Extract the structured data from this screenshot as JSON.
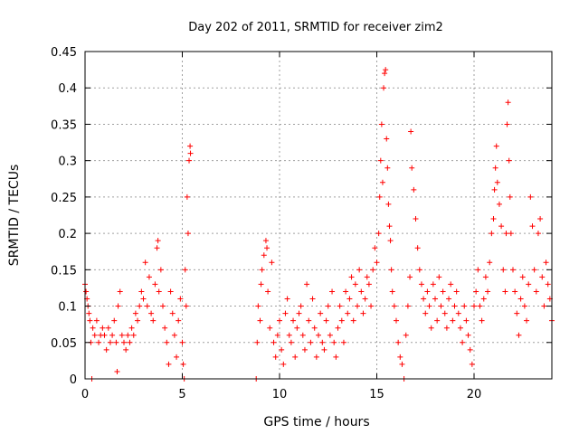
{
  "chart_data": {
    "type": "scatter",
    "title": "Day 202 of 2011, SRMTID for receiver zim2",
    "xlabel": "GPS time / hours",
    "ylabel": "SRMTID / TECUs",
    "xlim": [
      0,
      24
    ],
    "ylim": [
      0,
      0.45
    ],
    "xticks": [
      0,
      5,
      10,
      15,
      20
    ],
    "xtick_labels": [
      "0",
      "5",
      "10",
      "15",
      "20"
    ],
    "yticks": [
      0,
      0.05,
      0.1,
      0.15,
      0.2,
      0.25,
      0.3,
      0.35,
      0.4,
      0.45
    ],
    "ytick_labels": [
      "0",
      "0.05",
      "0.1",
      "0.15",
      "0.2",
      "0.25",
      "0.3",
      "0.35",
      "0.4",
      "0.45"
    ],
    "grid": true,
    "marker": "+",
    "color": "#ff0000",
    "series": [
      {
        "name": "SRMTID",
        "points": [
          [
            0.0,
            0.13
          ],
          [
            0.05,
            0.12
          ],
          [
            0.1,
            0.11
          ],
          [
            0.15,
            0.1
          ],
          [
            0.2,
            0.09
          ],
          [
            0.25,
            0.08
          ],
          [
            0.3,
            0.05
          ],
          [
            0.35,
            0.0
          ],
          [
            0.4,
            0.07
          ],
          [
            0.5,
            0.06
          ],
          [
            0.6,
            0.08
          ],
          [
            0.7,
            0.05
          ],
          [
            0.8,
            0.06
          ],
          [
            0.9,
            0.07
          ],
          [
            1.0,
            0.06
          ],
          [
            1.1,
            0.04
          ],
          [
            1.2,
            0.07
          ],
          [
            1.3,
            0.05
          ],
          [
            1.4,
            0.06
          ],
          [
            1.5,
            0.08
          ],
          [
            1.6,
            0.05
          ],
          [
            1.65,
            0.01
          ],
          [
            1.7,
            0.1
          ],
          [
            1.8,
            0.12
          ],
          [
            1.9,
            0.06
          ],
          [
            2.0,
            0.05
          ],
          [
            2.1,
            0.04
          ],
          [
            2.2,
            0.06
          ],
          [
            2.3,
            0.05
          ],
          [
            2.4,
            0.07
          ],
          [
            2.5,
            0.06
          ],
          [
            2.6,
            0.09
          ],
          [
            2.7,
            0.08
          ],
          [
            2.8,
            0.1
          ],
          [
            2.9,
            0.12
          ],
          [
            3.0,
            0.11
          ],
          [
            3.1,
            0.16
          ],
          [
            3.2,
            0.1
          ],
          [
            3.3,
            0.14
          ],
          [
            3.4,
            0.09
          ],
          [
            3.5,
            0.08
          ],
          [
            3.6,
            0.13
          ],
          [
            3.7,
            0.18
          ],
          [
            3.75,
            0.19
          ],
          [
            3.8,
            0.12
          ],
          [
            3.9,
            0.15
          ],
          [
            4.0,
            0.1
          ],
          [
            4.1,
            0.07
          ],
          [
            4.2,
            0.05
          ],
          [
            4.3,
            0.02
          ],
          [
            4.4,
            0.12
          ],
          [
            4.5,
            0.09
          ],
          [
            4.6,
            0.06
          ],
          [
            4.7,
            0.03
          ],
          [
            4.8,
            0.08
          ],
          [
            4.9,
            0.11
          ],
          [
            5.0,
            0.05
          ],
          [
            5.05,
            0.02
          ],
          [
            5.1,
            0.0
          ],
          [
            5.15,
            0.15
          ],
          [
            5.2,
            0.1
          ],
          [
            5.25,
            0.25
          ],
          [
            5.3,
            0.2
          ],
          [
            5.35,
            0.3
          ],
          [
            5.4,
            0.32
          ],
          [
            5.42,
            0.31
          ],
          [
            8.8,
            0.0
          ],
          [
            8.85,
            0.05
          ],
          [
            8.9,
            0.1
          ],
          [
            9.0,
            0.08
          ],
          [
            9.05,
            0.13
          ],
          [
            9.1,
            0.15
          ],
          [
            9.2,
            0.17
          ],
          [
            9.3,
            0.19
          ],
          [
            9.35,
            0.18
          ],
          [
            9.4,
            0.12
          ],
          [
            9.5,
            0.07
          ],
          [
            9.6,
            0.16
          ],
          [
            9.7,
            0.05
          ],
          [
            9.8,
            0.03
          ],
          [
            9.9,
            0.06
          ],
          [
            10.0,
            0.08
          ],
          [
            10.1,
            0.04
          ],
          [
            10.2,
            0.02
          ],
          [
            10.3,
            0.09
          ],
          [
            10.4,
            0.11
          ],
          [
            10.5,
            0.06
          ],
          [
            10.6,
            0.05
          ],
          [
            10.7,
            0.08
          ],
          [
            10.8,
            0.03
          ],
          [
            10.9,
            0.07
          ],
          [
            11.0,
            0.09
          ],
          [
            11.1,
            0.1
          ],
          [
            11.2,
            0.06
          ],
          [
            11.3,
            0.04
          ],
          [
            11.4,
            0.13
          ],
          [
            11.5,
            0.08
          ],
          [
            11.6,
            0.05
          ],
          [
            11.7,
            0.11
          ],
          [
            11.8,
            0.07
          ],
          [
            11.9,
            0.03
          ],
          [
            12.0,
            0.06
          ],
          [
            12.1,
            0.09
          ],
          [
            12.2,
            0.05
          ],
          [
            12.3,
            0.04
          ],
          [
            12.4,
            0.08
          ],
          [
            12.5,
            0.1
          ],
          [
            12.6,
            0.06
          ],
          [
            12.7,
            0.12
          ],
          [
            12.8,
            0.05
          ],
          [
            12.9,
            0.03
          ],
          [
            13.0,
            0.07
          ],
          [
            13.1,
            0.1
          ],
          [
            13.2,
            0.08
          ],
          [
            13.3,
            0.05
          ],
          [
            13.4,
            0.12
          ],
          [
            13.5,
            0.09
          ],
          [
            13.6,
            0.11
          ],
          [
            13.7,
            0.14
          ],
          [
            13.8,
            0.08
          ],
          [
            13.9,
            0.13
          ],
          [
            14.0,
            0.1
          ],
          [
            14.1,
            0.15
          ],
          [
            14.2,
            0.12
          ],
          [
            14.3,
            0.09
          ],
          [
            14.4,
            0.11
          ],
          [
            14.5,
            0.14
          ],
          [
            14.6,
            0.13
          ],
          [
            14.7,
            0.1
          ],
          [
            14.8,
            0.15
          ],
          [
            14.9,
            0.18
          ],
          [
            15.0,
            0.16
          ],
          [
            15.1,
            0.2
          ],
          [
            15.15,
            0.25
          ],
          [
            15.2,
            0.3
          ],
          [
            15.25,
            0.35
          ],
          [
            15.3,
            0.27
          ],
          [
            15.35,
            0.4
          ],
          [
            15.4,
            0.42
          ],
          [
            15.45,
            0.425
          ],
          [
            15.5,
            0.33
          ],
          [
            15.55,
            0.29
          ],
          [
            15.6,
            0.24
          ],
          [
            15.65,
            0.21
          ],
          [
            15.7,
            0.19
          ],
          [
            15.75,
            0.15
          ],
          [
            15.8,
            0.12
          ],
          [
            15.9,
            0.1
          ],
          [
            16.0,
            0.08
          ],
          [
            16.1,
            0.05
          ],
          [
            16.2,
            0.03
          ],
          [
            16.3,
            0.02
          ],
          [
            16.4,
            0.0
          ],
          [
            16.5,
            0.06
          ],
          [
            16.6,
            0.1
          ],
          [
            16.7,
            0.14
          ],
          [
            16.75,
            0.34
          ],
          [
            16.8,
            0.29
          ],
          [
            16.9,
            0.26
          ],
          [
            17.0,
            0.22
          ],
          [
            17.1,
            0.18
          ],
          [
            17.2,
            0.15
          ],
          [
            17.3,
            0.13
          ],
          [
            17.4,
            0.11
          ],
          [
            17.5,
            0.09
          ],
          [
            17.6,
            0.12
          ],
          [
            17.7,
            0.1
          ],
          [
            17.8,
            0.07
          ],
          [
            17.9,
            0.13
          ],
          [
            18.0,
            0.11
          ],
          [
            18.1,
            0.08
          ],
          [
            18.2,
            0.14
          ],
          [
            18.3,
            0.1
          ],
          [
            18.4,
            0.12
          ],
          [
            18.5,
            0.09
          ],
          [
            18.6,
            0.07
          ],
          [
            18.7,
            0.11
          ],
          [
            18.8,
            0.13
          ],
          [
            18.9,
            0.08
          ],
          [
            19.0,
            0.1
          ],
          [
            19.1,
            0.12
          ],
          [
            19.2,
            0.09
          ],
          [
            19.3,
            0.07
          ],
          [
            19.4,
            0.05
          ],
          [
            19.5,
            0.1
          ],
          [
            19.6,
            0.08
          ],
          [
            19.7,
            0.06
          ],
          [
            19.8,
            0.04
          ],
          [
            19.9,
            0.02
          ],
          [
            20.0,
            0.1
          ],
          [
            20.1,
            0.12
          ],
          [
            20.2,
            0.15
          ],
          [
            20.3,
            0.1
          ],
          [
            20.4,
            0.08
          ],
          [
            20.5,
            0.11
          ],
          [
            20.6,
            0.14
          ],
          [
            20.7,
            0.12
          ],
          [
            20.8,
            0.16
          ],
          [
            20.9,
            0.2
          ],
          [
            21.0,
            0.22
          ],
          [
            21.05,
            0.26
          ],
          [
            21.1,
            0.29
          ],
          [
            21.15,
            0.32
          ],
          [
            21.2,
            0.27
          ],
          [
            21.3,
            0.24
          ],
          [
            21.4,
            0.21
          ],
          [
            21.5,
            0.15
          ],
          [
            21.6,
            0.12
          ],
          [
            21.65,
            0.2
          ],
          [
            21.7,
            0.35
          ],
          [
            21.75,
            0.38
          ],
          [
            21.8,
            0.3
          ],
          [
            21.85,
            0.25
          ],
          [
            21.9,
            0.2
          ],
          [
            22.0,
            0.15
          ],
          [
            22.1,
            0.12
          ],
          [
            22.2,
            0.09
          ],
          [
            22.3,
            0.06
          ],
          [
            22.4,
            0.11
          ],
          [
            22.5,
            0.14
          ],
          [
            22.6,
            0.1
          ],
          [
            22.7,
            0.08
          ],
          [
            22.8,
            0.13
          ],
          [
            22.9,
            0.25
          ],
          [
            23.0,
            0.21
          ],
          [
            23.1,
            0.15
          ],
          [
            23.2,
            0.12
          ],
          [
            23.3,
            0.2
          ],
          [
            23.4,
            0.22
          ],
          [
            23.5,
            0.14
          ],
          [
            23.6,
            0.1
          ],
          [
            23.7,
            0.16
          ],
          [
            23.8,
            0.13
          ],
          [
            23.9,
            0.11
          ],
          [
            24.0,
            0.08
          ]
        ]
      }
    ]
  }
}
